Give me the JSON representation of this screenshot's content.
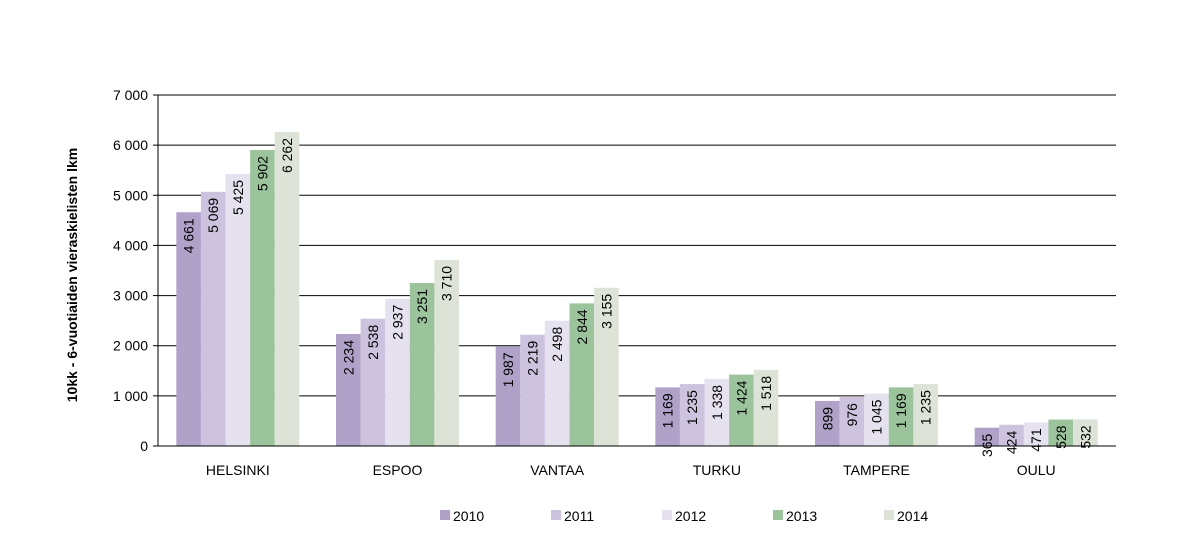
{
  "chart_data": {
    "type": "bar",
    "title": "",
    "ylabel": "10kk - 6-vuotiaiden vieraskielisten lkm",
    "xlabel": "",
    "ylim": [
      0,
      7000
    ],
    "yticks": [
      0,
      1000,
      2000,
      3000,
      4000,
      5000,
      6000,
      7000
    ],
    "ytick_labels": [
      "0",
      "1 000",
      "2 000",
      "3 000",
      "4 000",
      "5 000",
      "6 000",
      "7 000"
    ],
    "grid": true,
    "legend_position": "bottom",
    "categories": [
      "HELSINKI",
      "ESPOO",
      "VANTAA",
      "TURKU",
      "TAMPERE",
      "OULU"
    ],
    "series": [
      {
        "name": "2010",
        "color": "#b0a1c9",
        "values": [
          4661,
          2234,
          1987,
          1169,
          899,
          365
        ],
        "labels": [
          "4 661",
          "2 234",
          "1 987",
          "1 169",
          "899",
          "365"
        ]
      },
      {
        "name": "2011",
        "color": "#cdc3de",
        "values": [
          5069,
          2538,
          2219,
          1235,
          976,
          424
        ],
        "labels": [
          "5 069",
          "2 538",
          "2 219",
          "1 235",
          "976",
          "424"
        ]
      },
      {
        "name": "2012",
        "color": "#e5e1ee",
        "values": [
          5425,
          2937,
          2498,
          1338,
          1045,
          471
        ],
        "labels": [
          "5 425",
          "2 937",
          "2 498",
          "1 338",
          "1 045",
          "471"
        ]
      },
      {
        "name": "2013",
        "color": "#9cc49c",
        "values": [
          5902,
          3251,
          2844,
          1424,
          1169,
          528
        ],
        "labels": [
          "5 902",
          "3 251",
          "2 844",
          "1 424",
          "1 169",
          "528"
        ]
      },
      {
        "name": "2014",
        "color": "#dde3d6",
        "values": [
          6262,
          3710,
          3155,
          1518,
          1235,
          532
        ],
        "labels": [
          "6 262",
          "3 710",
          "3 155",
          "1 518",
          "1 235",
          "532"
        ]
      }
    ]
  }
}
